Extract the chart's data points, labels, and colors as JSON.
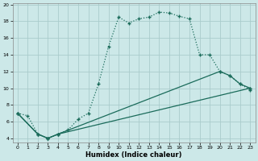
{
  "xlabel": "Humidex (Indice chaleur)",
  "bg_color": "#cce8e8",
  "grid_color": "#aacccc",
  "line_color": "#1a6b5a",
  "xlim": [
    -0.5,
    23.5
  ],
  "ylim": [
    3.5,
    20.2
  ],
  "xticks": [
    0,
    1,
    2,
    3,
    4,
    5,
    6,
    7,
    8,
    9,
    10,
    11,
    12,
    13,
    14,
    15,
    16,
    17,
    18,
    19,
    20,
    21,
    22,
    23
  ],
  "yticks": [
    4,
    6,
    8,
    10,
    12,
    14,
    16,
    18,
    20
  ],
  "line1_x": [
    0,
    1,
    2,
    3,
    4,
    5,
    6,
    7,
    8,
    9,
    10,
    11,
    12,
    13,
    14,
    15,
    16,
    17,
    18,
    19,
    20,
    21,
    22,
    23
  ],
  "line1_y": [
    7.0,
    6.7,
    4.5,
    4.0,
    4.5,
    5.0,
    6.3,
    7.0,
    10.5,
    15.0,
    18.5,
    17.8,
    18.3,
    18.5,
    19.1,
    19.0,
    18.6,
    18.3,
    14.0,
    14.0,
    12.0,
    11.5,
    10.5,
    9.8
  ],
  "line2_x": [
    0,
    2,
    3,
    4,
    20,
    21,
    22,
    23
  ],
  "line2_y": [
    7.0,
    4.5,
    4.0,
    4.5,
    12.0,
    11.5,
    10.5,
    10.0
  ],
  "line3_x": [
    0,
    2,
    3,
    4,
    23
  ],
  "line3_y": [
    7.0,
    4.5,
    4.0,
    4.5,
    10.0
  ]
}
